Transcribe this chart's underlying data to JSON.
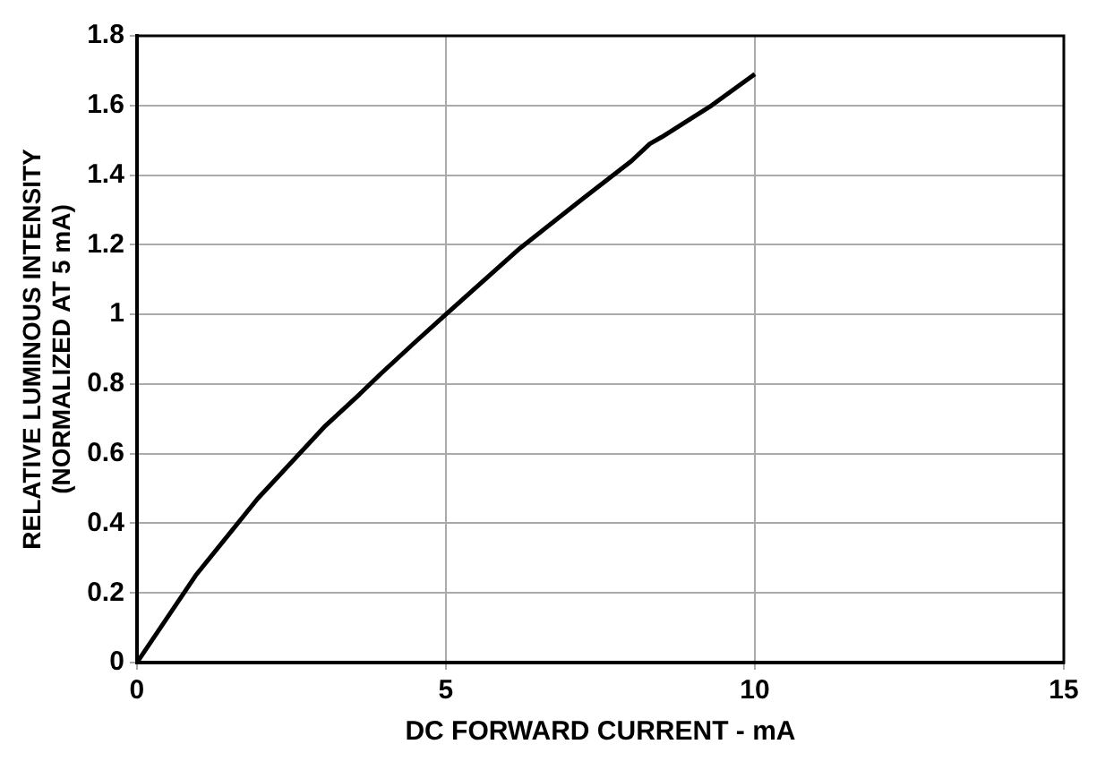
{
  "chart_data": {
    "type": "line",
    "xlabel": "DC FORWARD CURRENT - mA",
    "ylabel": "RELATIVE LUMINOUS INTENSITY\n(NORMALIZED AT 5 mA)",
    "x": [
      0,
      0.95,
      1.95,
      3.05,
      3.6,
      3.95,
      4.5,
      5,
      6.2,
      7.2,
      8,
      8.3,
      8.5,
      9.3,
      10
    ],
    "series": [
      {
        "color": "#000000",
        "values": [
          0,
          0.25,
          0.47,
          0.68,
          0.77,
          0.83,
          0.92,
          1.0,
          1.19,
          1.33,
          1.44,
          1.49,
          1.51,
          1.6,
          1.69
        ]
      }
    ],
    "xlim": [
      0,
      15
    ],
    "xticks": [
      0,
      5,
      10,
      15
    ],
    "ylim": [
      0,
      1.8
    ],
    "yticks": [
      0,
      0.2,
      0.4,
      0.6,
      0.8,
      1,
      1.2,
      1.4,
      1.6,
      1.8
    ],
    "grid": true,
    "legend": false,
    "marker": "none",
    "line_style": "solid"
  }
}
